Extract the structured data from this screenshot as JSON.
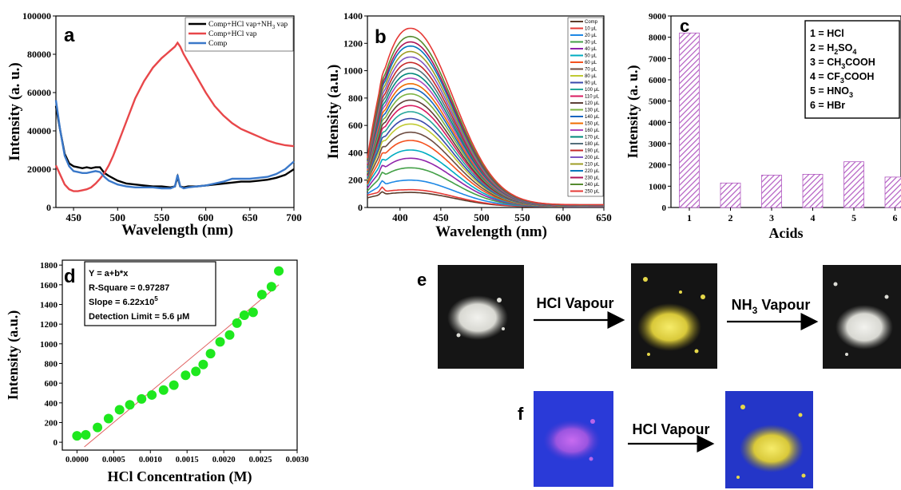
{
  "chart_data": [
    {
      "panel": "a",
      "type": "line",
      "xlabel": "Wavelength (nm)",
      "ylabel": "Intensity (a. u.)",
      "xlim": [
        430,
        700
      ],
      "ylim": [
        0,
        100000
      ],
      "xticks": [
        450,
        500,
        550,
        600,
        650,
        700
      ],
      "yticks": [
        0,
        20000,
        40000,
        60000,
        80000,
        100000
      ],
      "legend_position": "top-right",
      "series": [
        {
          "name": "Comp+HCl vap+NH3 vap",
          "legend_text": "Comp+HCl vap+NH",
          "legend_sub": "3",
          "legend_tail": " vap",
          "color": "#000000",
          "x": [
            430,
            435,
            440,
            445,
            450,
            455,
            460,
            465,
            470,
            475,
            480,
            485,
            490,
            500,
            510,
            520,
            530,
            540,
            550,
            560,
            565,
            568,
            571,
            575,
            580,
            590,
            600,
            610,
            620,
            630,
            640,
            650,
            660,
            670,
            680,
            690,
            700
          ],
          "y": [
            53000,
            40000,
            28000,
            23000,
            21500,
            21000,
            20500,
            21000,
            20500,
            21000,
            21000,
            18000,
            16500,
            14000,
            12500,
            12000,
            11500,
            11000,
            11000,
            10500,
            11000,
            16000,
            11000,
            10500,
            11000,
            11000,
            11500,
            12000,
            12500,
            13000,
            13500,
            13500,
            14000,
            14500,
            15500,
            17000,
            20000
          ]
        },
        {
          "name": "Comp+HCl vap",
          "legend_text": "Comp+HCl vap",
          "legend_sub": "",
          "legend_tail": "",
          "color": "#e8474a",
          "x": [
            430,
            435,
            440,
            445,
            450,
            455,
            460,
            465,
            470,
            475,
            480,
            485,
            490,
            495,
            500,
            510,
            520,
            530,
            540,
            550,
            555,
            560,
            565,
            568,
            571,
            575,
            580,
            590,
            600,
            610,
            620,
            630,
            640,
            650,
            660,
            670,
            680,
            690,
            700
          ],
          "y": [
            22000,
            17000,
            12000,
            9500,
            8500,
            8500,
            9000,
            9500,
            10500,
            12500,
            15000,
            18000,
            22000,
            27000,
            33000,
            45000,
            57000,
            66000,
            73000,
            78000,
            80000,
            82000,
            84000,
            86000,
            84000,
            80000,
            76000,
            68000,
            60000,
            53000,
            48000,
            44000,
            41000,
            39000,
            37000,
            35000,
            33500,
            32500,
            32000
          ]
        },
        {
          "name": "Comp",
          "legend_text": "Comp",
          "legend_sub": "",
          "legend_tail": "",
          "color": "#3a78c9",
          "x": [
            430,
            435,
            440,
            445,
            450,
            455,
            460,
            465,
            470,
            475,
            480,
            485,
            490,
            500,
            510,
            520,
            530,
            540,
            550,
            560,
            565,
            568,
            571,
            575,
            580,
            590,
            600,
            610,
            620,
            630,
            640,
            650,
            660,
            670,
            680,
            690,
            700
          ],
          "y": [
            56000,
            40000,
            27000,
            21500,
            19000,
            18500,
            18000,
            18000,
            18500,
            19000,
            18500,
            16000,
            14000,
            12000,
            11000,
            10500,
            10500,
            10500,
            10000,
            10000,
            11000,
            17000,
            11000,
            10000,
            10500,
            11000,
            11500,
            12500,
            13500,
            15000,
            15000,
            15000,
            15500,
            16000,
            17500,
            20000,
            24000
          ]
        }
      ]
    },
    {
      "panel": "b",
      "type": "line",
      "xlabel": "Wavelength (nm)",
      "ylabel": "Intensity (a.u.)",
      "xlim": [
        360,
        650
      ],
      "ylim": [
        0,
        1400
      ],
      "xticks": [
        400,
        450,
        500,
        550,
        600,
        650
      ],
      "yticks": [
        0,
        200,
        400,
        600,
        800,
        1000,
        1200,
        1400
      ],
      "peak_x": 413,
      "tail_x": 650,
      "legend_position": "top-right",
      "series_names": [
        "Comp",
        "10 μL",
        "20 μL",
        "30 μL",
        "40 μL",
        "50 μL",
        "60 μL",
        "70 μL",
        "80 μL",
        "90 μL",
        "100 μL",
        "110 μL",
        "120 μL",
        "130 μL",
        "140 μL",
        "150 μL",
        "160 μL",
        "170 μL",
        "180 μL",
        "190 μL",
        "200 μL",
        "210 μL",
        "220 μL",
        "230 μL",
        "240 μL",
        "250 μL"
      ],
      "series_colors": [
        "#5b3a29",
        "#e53935",
        "#1e88e5",
        "#43a047",
        "#8e24aa",
        "#00acc1",
        "#f4511e",
        "#6d4c41",
        "#c0ca33",
        "#3949ab",
        "#26a69a",
        "#d81b60",
        "#5d4037",
        "#7cb342",
        "#1565c0",
        "#ef6c00",
        "#ab47bc",
        "#00897b",
        "#546e7a",
        "#c62828",
        "#7e57c2",
        "#9e9d24",
        "#0277bd",
        "#ad1457",
        "#558b2f",
        "#e53935"
      ],
      "peak_values": [
        110,
        130,
        200,
        290,
        360,
        420,
        490,
        550,
        610,
        650,
        700,
        745,
        785,
        830,
        870,
        905,
        945,
        980,
        1020,
        1060,
        1100,
        1140,
        1180,
        1210,
        1250,
        1310
      ],
      "start_values": [
        70,
        90,
        100,
        120,
        140,
        160,
        170,
        190,
        200,
        210,
        220,
        230,
        240,
        250,
        260,
        270,
        280,
        290,
        300,
        310,
        320,
        330,
        340,
        345,
        350,
        360
      ],
      "tail_values": [
        5,
        6,
        7,
        8,
        9,
        10,
        10,
        11,
        11,
        12,
        12,
        13,
        13,
        14,
        14,
        15,
        15,
        16,
        16,
        17,
        17,
        18,
        18,
        19,
        19,
        20
      ]
    },
    {
      "panel": "c",
      "type": "bar",
      "xlabel": "Acids",
      "ylabel": "Intensity (a. u.)",
      "categories": [
        "1",
        "2",
        "3",
        "4",
        "5",
        "6"
      ],
      "values": [
        8200,
        1150,
        1520,
        1560,
        2150,
        1430
      ],
      "ylim": [
        0,
        9000
      ],
      "yticks": [
        0,
        1000,
        2000,
        3000,
        4000,
        5000,
        6000,
        7000,
        8000,
        9000
      ],
      "bar_color": "#b25bc2",
      "legend_position": "top-right",
      "legend": [
        {
          "main": "1 = HCl",
          "sub": "",
          "tail": ""
        },
        {
          "main": "2 = H",
          "sub": "2",
          "tail": "SO",
          "sub2": "4"
        },
        {
          "main": "3 = CH",
          "sub": "3",
          "tail": "COOH",
          "sub2": ""
        },
        {
          "main": "4 = CF",
          "sub": "3",
          "tail": "COOH",
          "sub2": ""
        },
        {
          "main": "5 = HNO",
          "sub": "3",
          "tail": "",
          "sub2": ""
        },
        {
          "main": "6 = HBr",
          "sub": "",
          "tail": "",
          "sub2": ""
        }
      ]
    },
    {
      "panel": "d",
      "type": "scatter",
      "xlabel": "HCl Concentration (M)",
      "ylabel": "Intensity (a.u.)",
      "xlim": [
        -0.0002,
        0.003
      ],
      "ylim": [
        -80,
        1850
      ],
      "xticks": [
        "0.0000",
        "0.0005",
        "0.0010",
        "0.0015",
        "0.0020",
        "0.0025",
        "0.0030"
      ],
      "yticks": [
        0,
        200,
        400,
        600,
        800,
        1000,
        1200,
        1400,
        1600,
        1800
      ],
      "point_color": "#1ee81e",
      "fit_color": "#e06060",
      "fit_line": {
        "intercept": -110,
        "slope": 622000
      },
      "x": [
        0.0,
        0.00012,
        0.00028,
        0.00043,
        0.00058,
        0.00072,
        0.00088,
        0.00102,
        0.00118,
        0.00132,
        0.00148,
        0.00162,
        0.00172,
        0.00182,
        0.00195,
        0.00208,
        0.00218,
        0.00228,
        0.0024,
        0.00252,
        0.00265,
        0.00275
      ],
      "y": [
        65,
        75,
        150,
        240,
        330,
        380,
        440,
        480,
        530,
        580,
        680,
        720,
        790,
        900,
        1020,
        1090,
        1210,
        1290,
        1320,
        1500,
        1580,
        1740
      ],
      "info_box": {
        "line1": "Y = a+b*x",
        "line2": "R-Square = 0.97287",
        "line3_main": "Slope = 6.22x10",
        "line3_sup": "5",
        "line4": "Detection Limit = 5.6 μM"
      }
    }
  ],
  "panel_labels": {
    "a": "a",
    "b": "b",
    "c": "c",
    "d": "d",
    "e": "e",
    "f": "f"
  },
  "photos": {
    "e_step1_label": "HCl Vapour",
    "e_step2_label_main": "NH",
    "e_step2_label_sub": "3",
    "e_step2_label_tail": " Vapour",
    "f_step1_label": "HCl Vapour"
  }
}
